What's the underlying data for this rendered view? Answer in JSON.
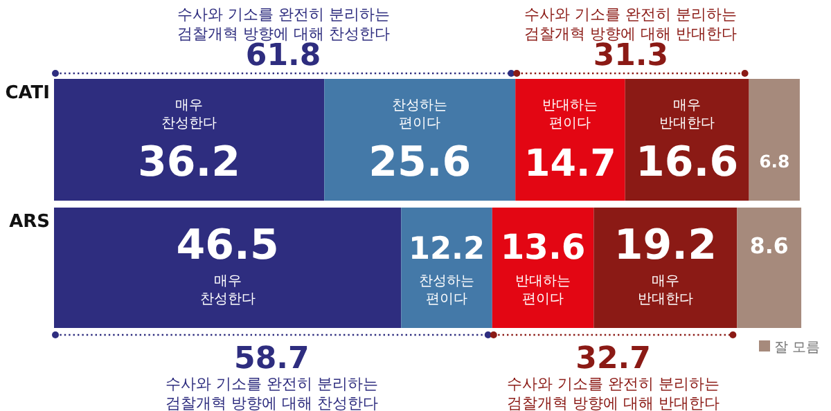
{
  "chart_data": {
    "type": "bar",
    "orientation": "horizontal",
    "stacked": true,
    "categories": [
      "CATI",
      "ARS"
    ],
    "xlim": [
      0,
      100
    ],
    "tick_labels": "y",
    "data_labels": true,
    "legend": "bottom right",
    "series": [
      {
        "name": "매우 찬성한다",
        "color": "#2e2d7f",
        "values": [
          36.2,
          46.5
        ]
      },
      {
        "name": "찬성하는 편이다",
        "color": "#4479a8",
        "values": [
          25.6,
          12.2
        ]
      },
      {
        "name": "반대하는 편이다",
        "color": "#e30613",
        "values": [
          14.7,
          13.6
        ]
      },
      {
        "name": "매우 반대한다",
        "color": "#8b1a15",
        "values": [
          16.6,
          19.2
        ]
      },
      {
        "name": "잘 모름",
        "color": "#a68a7c",
        "values": [
          6.8,
          8.6
        ]
      }
    ],
    "annotations": [
      "수사와 기소를 완전히 분리하는 검찰개혁 방향에 대해 찬성한다",
      "61.8",
      "수사와 기소를 완전히 분리하는 검찰개혁 방향에 대해 반대한다",
      "31.3",
      "58.7",
      "수사와 기소를 완전히 분리하는 검찰개혁 방향에 대해 찬성한다",
      "32.7",
      "수사와 기소를 완전히 분리하는 검찰개혁 방향에 대해 반대한다"
    ]
  }
}
